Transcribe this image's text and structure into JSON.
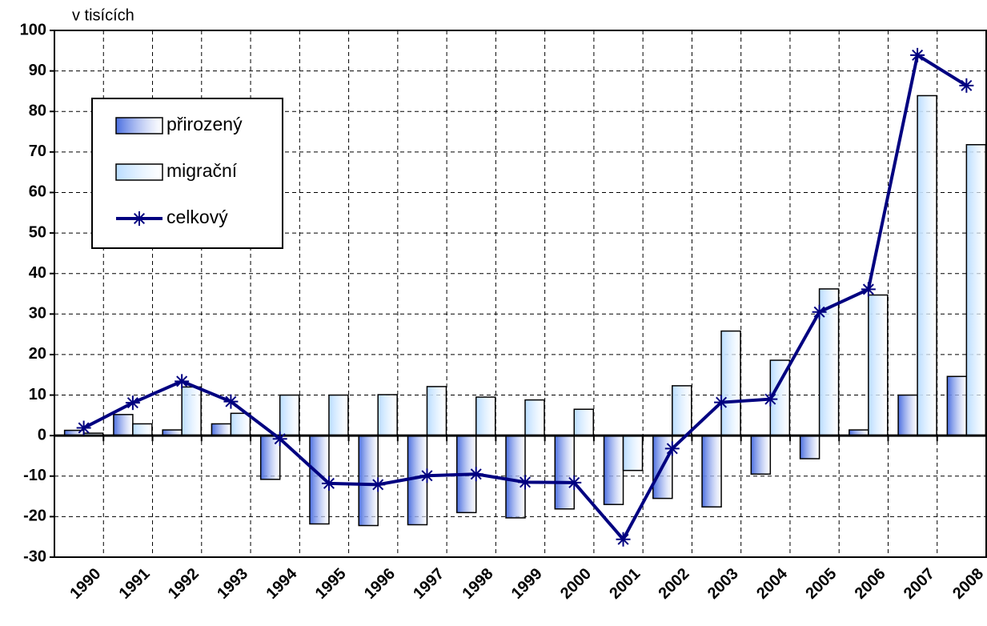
{
  "chart_data": {
    "type": "bar_line",
    "y_axis_label": "v tisících",
    "categories": [
      "1990",
      "1991",
      "1992",
      "1993",
      "1994",
      "1995",
      "1996",
      "1997",
      "1998",
      "1999",
      "2000",
      "2001",
      "2002",
      "2003",
      "2004",
      "2005",
      "2006",
      "2007",
      "2008"
    ],
    "series": [
      {
        "name": "přirozený",
        "type": "bar",
        "color": "#4a6ee0",
        "values": [
          1.3,
          5.2,
          1.4,
          2.9,
          -10.8,
          -21.8,
          -22.2,
          -22.0,
          -19.0,
          -20.3,
          -18.1,
          -17.0,
          -15.5,
          -17.6,
          -9.5,
          -5.7,
          1.4,
          10.0,
          14.6
        ]
      },
      {
        "name": "migrační",
        "type": "bar",
        "color": "#b8dcff",
        "values": [
          0.6,
          2.9,
          12.0,
          5.5,
          10.0,
          10.0,
          10.1,
          12.1,
          9.5,
          8.8,
          6.5,
          -8.6,
          12.3,
          25.8,
          18.6,
          36.2,
          34.7,
          83.9,
          71.8
        ]
      },
      {
        "name": "celkový",
        "type": "line",
        "color": "#000080",
        "values": [
          1.9,
          8.1,
          13.4,
          8.4,
          -0.8,
          -11.8,
          -12.1,
          -9.9,
          -9.5,
          -11.5,
          -11.6,
          -25.6,
          -3.2,
          8.2,
          9.0,
          30.5,
          36.1,
          93.9,
          86.4
        ]
      }
    ],
    "ylim": [
      -30,
      100
    ],
    "yticks": [
      -30,
      -20,
      -10,
      0,
      10,
      20,
      30,
      40,
      50,
      60,
      70,
      80,
      90,
      100
    ],
    "grid": true,
    "legend": "upper left"
  }
}
